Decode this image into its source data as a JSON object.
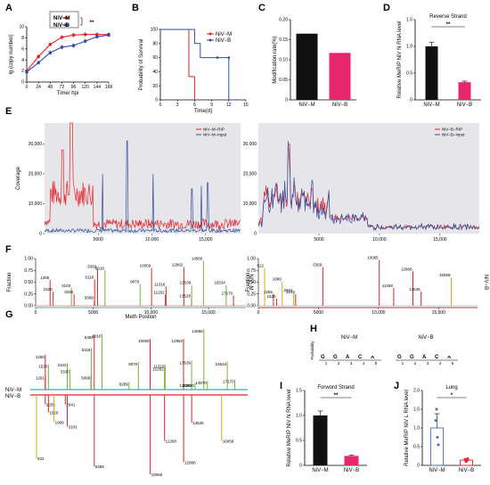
{
  "panel_labels": [
    "A",
    "B",
    "C",
    "D",
    "E",
    "F",
    "G",
    "H",
    "I",
    "J"
  ],
  "chart_data": [
    {
      "panel": "A",
      "type": "line",
      "xlabel": "Time/ hpi",
      "ylabel": "lg (copy number)",
      "x": [
        0,
        24,
        48,
        72,
        96,
        120,
        144,
        168
      ],
      "xtick_labels": [
        "0",
        "24",
        "48",
        "72",
        "96",
        "120",
        "144",
        "168"
      ],
      "yticks": [
        0,
        2,
        4,
        6,
        8,
        10
      ],
      "ylim": [
        0,
        10
      ],
      "xlim": [
        0,
        168
      ],
      "series": [
        {
          "name": "NiV−M",
          "color": "#e8212a",
          "values": [
            2.0,
            4.6,
            6.8,
            8.1,
            8.5,
            8.6,
            8.6,
            8.6
          ]
        },
        {
          "name": "NiV−B",
          "color": "#2e4f9e",
          "values": [
            1.8,
            3.5,
            5.3,
            6.3,
            6.6,
            7.4,
            8.2,
            8.5
          ]
        }
      ],
      "significance": "**"
    },
    {
      "panel": "B",
      "type": "line",
      "xlabel": "Time(d)",
      "ylabel": "Probability of Survival",
      "xticks": [
        0,
        3,
        6,
        9,
        12,
        15
      ],
      "yticks": [
        0,
        20,
        40,
        60,
        80,
        100
      ],
      "xlim": [
        0,
        15
      ],
      "ylim": [
        0,
        100
      ],
      "series": [
        {
          "name": "NiV−M",
          "color": "#e8212a",
          "steps": [
            [
              0,
              100
            ],
            [
              5,
              100
            ],
            [
              5,
              33
            ],
            [
              6,
              33
            ],
            [
              6,
              0
            ]
          ]
        },
        {
          "name": "NiV−B",
          "color": "#2e4f9e",
          "steps": [
            [
              0,
              100
            ],
            [
              6,
              100
            ],
            [
              6,
              80
            ],
            [
              7,
              80
            ],
            [
              7,
              60
            ],
            [
              12,
              60
            ],
            [
              12,
              0
            ],
            [
              13,
              0
            ]
          ]
        }
      ]
    },
    {
      "panel": "C",
      "type": "bar",
      "ylabel": "Modification rate(%)",
      "categories": [
        "NiV−M",
        "NiV−B"
      ],
      "values": [
        0.165,
        0.117
      ],
      "colors": [
        "#111111",
        "#e8266e"
      ],
      "yticks": [
        0,
        0.05,
        0.1,
        0.15,
        0.2
      ],
      "ytick_labels": [
        "0",
        "0.05",
        "0.10",
        "0.15",
        "0.20"
      ],
      "ylim": [
        0,
        0.2
      ]
    },
    {
      "panel": "D",
      "type": "bar",
      "title": "Reverse Strand",
      "ylabel": "Relative MeRIP NiV N RNA level",
      "categories": [
        "NiV−M",
        "NiV−B"
      ],
      "values": [
        1.0,
        0.33
      ],
      "errors": [
        0.08,
        0.02
      ],
      "colors": [
        "#111111",
        "#e8266e"
      ],
      "yticks": [
        0,
        0.5,
        1.0,
        1.5
      ],
      "ytick_labels": [
        "0",
        "0.5",
        "1.0",
        "1.5"
      ],
      "ylim": [
        0,
        1.5
      ],
      "significance": "**"
    },
    {
      "panel": "E",
      "type": "area",
      "ylabel": "Coverage",
      "xticks": [
        5000,
        10000,
        15000
      ],
      "xtick_labels": [
        "5000",
        "10,000",
        "15,000"
      ],
      "yticks": [
        0,
        10000,
        20000,
        30000
      ],
      "ytick_labels": [
        "0",
        "10,000",
        "20,000",
        "30,000"
      ],
      "xlim": [
        0,
        18246
      ],
      "ylim": [
        0,
        37000
      ],
      "tracks": [
        {
          "legend": [
            "NiV−M−RIP",
            "NiV−M−Input"
          ],
          "colors": [
            "#e8212a",
            "#2e4f9e"
          ]
        },
        {
          "legend": [
            "NiV−B−RIP",
            "NiV−B−Input"
          ],
          "colors": [
            "#e8212a",
            "#2e4f9e"
          ]
        }
      ]
    },
    {
      "panel": "F",
      "type": "bar",
      "xlabel": "Meth Postion",
      "ylabel": "Fraction",
      "yticks": [
        0,
        0.25,
        0.5,
        0.75,
        1.0
      ],
      "ytick_labels": [
        "0.00",
        "0.25",
        "0.50",
        "0.75",
        "1.00"
      ],
      "xticks": [
        0,
        5000,
        10000,
        15000
      ],
      "xtick_labels": [
        "0",
        "5000",
        "10,000",
        "15,000"
      ],
      "sides": [
        {
          "tag": "NiV−M",
          "sites": [
            {
              "pos": 1255,
              "f": 0.55,
              "c": "#d62728"
            },
            {
              "pos": 1520,
              "f": 0.3,
              "c": "#d62728"
            },
            {
              "pos": 3103,
              "f": 0.38,
              "c": "#7cae3a"
            },
            {
              "pos": 3335,
              "f": 0.25,
              "c": "#d62728"
            },
            {
              "pos": 5099,
              "f": 0.12,
              "c": "#d62728"
            },
            {
              "pos": 5118,
              "f": 0.56,
              "c": "#d62728"
            },
            {
              "pos": 5369,
              "f": 0.78,
              "c": "#d62728"
            },
            {
              "pos": 6018,
              "f": 0.75,
              "c": "#7cae3a"
            },
            {
              "pos": 9070,
              "f": 0.46,
              "c": "#7cae3a"
            },
            {
              "pos": 10059,
              "f": 0.8,
              "c": "#d62728"
            },
            {
              "pos": 11262,
              "f": 0.24,
              "c": "#d62728"
            },
            {
              "pos": 11316,
              "f": 0.41,
              "c": "#d62728"
            },
            {
              "pos": 12862,
              "f": 0.82,
              "c": "#d62728"
            },
            {
              "pos": 13528,
              "f": 0.16,
              "c": "#d62728"
            },
            {
              "pos": 13539,
              "f": 0.44,
              "c": "#7cae3a"
            },
            {
              "pos": 14566,
              "f": 0.95,
              "c": "#7cae3a"
            },
            {
              "pos": 16534,
              "f": 0.44,
              "c": "#7cae3a"
            },
            {
              "pos": 17170,
              "f": 0.22,
              "c": "#d62728"
            }
          ]
        },
        {
          "tag": "NiV−B",
          "sites": [
            {
              "pos": 522,
              "f": 0.8,
              "c": "#d9a61c"
            },
            {
              "pos": 1255,
              "f": 0.25,
              "c": "#d62728"
            },
            {
              "pos": 1520,
              "f": 0.15,
              "c": "#d62728"
            },
            {
              "pos": 1989,
              "f": 0.52,
              "c": "#d9a61c"
            },
            {
              "pos": 2941,
              "f": 0.28,
              "c": "#d9a61c"
            },
            {
              "pos": 3103,
              "f": 0.25,
              "c": "#d62728"
            },
            {
              "pos": 5369,
              "f": 0.82,
              "c": "#d62728"
            },
            {
              "pos": 10065,
              "f": 0.97,
              "c": "#d62728"
            },
            {
              "pos": 11268,
              "f": 0.38,
              "c": "#d62728"
            },
            {
              "pos": 12868,
              "f": 0.73,
              "c": "#d62728"
            },
            {
              "pos": 13545,
              "f": 0.3,
              "c": "#d62728"
            },
            {
              "pos": 16058,
              "f": 0.6,
              "c": "#d9a61c"
            }
          ]
        }
      ]
    },
    {
      "panel": "G",
      "type": "bar",
      "tracks": [
        "NiV−M",
        "NiV−B"
      ],
      "up_sites": [
        {
          "pos": 1255,
          "f": 0.55,
          "c": "#d62728"
        },
        {
          "pos": 1261,
          "f": 0.22,
          "c": "#d62728"
        },
        {
          "pos": 1520,
          "f": 0.4,
          "c": "#7cae3a"
        },
        {
          "pos": 3103,
          "f": 0.42,
          "c": "#7cae3a"
        },
        {
          "pos": 3335,
          "f": 0.32,
          "c": "#7cae3a"
        },
        {
          "pos": 5099,
          "f": 0.22,
          "c": "#d62728"
        },
        {
          "pos": 5118,
          "f": 0.66,
          "c": "#7cae3a"
        },
        {
          "pos": 5369,
          "f": 0.86,
          "c": "#d62728"
        },
        {
          "pos": 6018,
          "f": 0.88,
          "c": "#7cae3a"
        },
        {
          "pos": 8289,
          "f": 0.12,
          "c": "#7cae3a"
        },
        {
          "pos": 9070,
          "f": 0.44,
          "c": "#7cae3a"
        },
        {
          "pos": 10059,
          "f": 0.8,
          "c": "#d62728"
        },
        {
          "pos": 11262,
          "f": 0.36,
          "c": "#7cae3a"
        },
        {
          "pos": 11316,
          "f": 0.4,
          "c": "#7cae3a"
        },
        {
          "pos": 12862,
          "f": 0.8,
          "c": "#d62728"
        },
        {
          "pos": 13528,
          "f": 0.1,
          "c": "#7cae3a"
        },
        {
          "pos": 13539,
          "f": 0.46,
          "c": "#7cae3a"
        },
        {
          "pos": 13830,
          "f": 0.1,
          "c": "#7cae3a"
        },
        {
          "pos": 14566,
          "f": 0.96,
          "c": "#7cae3a"
        },
        {
          "pos": 14870,
          "f": 0.14,
          "c": "#7cae3a"
        },
        {
          "pos": 16534,
          "f": 0.44,
          "c": "#7cae3a"
        },
        {
          "pos": 17170,
          "f": 0.16,
          "c": "#7cae3a"
        }
      ],
      "down_sites": [
        {
          "pos": 522,
          "f": 0.8,
          "c": "#d9a61c"
        },
        {
          "pos": 1255,
          "f": 0.12,
          "c": "#d62728"
        },
        {
          "pos": 1520,
          "f": 0.22,
          "c": "#d62728"
        },
        {
          "pos": 1989,
          "f": 0.34,
          "c": "#d9a61c"
        },
        {
          "pos": 2941,
          "f": 0.12,
          "c": "#d62728"
        },
        {
          "pos": 3103,
          "f": 0.4,
          "c": "#d62728"
        },
        {
          "pos": 5369,
          "f": 0.9,
          "c": "#d62728"
        },
        {
          "pos": 10065,
          "f": 1.0,
          "c": "#d62728"
        },
        {
          "pos": 11268,
          "f": 0.58,
          "c": "#d62728"
        },
        {
          "pos": 12868,
          "f": 0.85,
          "c": "#d62728"
        },
        {
          "pos": 13545,
          "f": 0.35,
          "c": "#d62728"
        },
        {
          "pos": 16058,
          "f": 0.58,
          "c": "#d9a61c"
        }
      ]
    },
    {
      "panel": "H",
      "type": "table",
      "motifs": [
        {
          "title": "NiV−M",
          "letters": [
            "G",
            "G",
            "A",
            "C",
            "A"
          ],
          "colors": [
            "#f0a500",
            "#f0a500",
            "#2ea84a",
            "#1f5fbf",
            "#2ea84a"
          ]
        },
        {
          "title": "NiV−B",
          "letters": [
            "G",
            "G",
            "A",
            "C",
            "A"
          ],
          "colors": [
            "#f0a500",
            "#f0a500",
            "#2ea84a",
            "#1f5fbf",
            "#2ea84a"
          ]
        }
      ],
      "positions": [
        "1",
        "2",
        "3",
        "4",
        "5"
      ],
      "ylabel": "Probability"
    },
    {
      "panel": "I",
      "type": "bar",
      "title": "Forword Strand",
      "ylabel": "Relative MeRIP NiV N RNA level",
      "categories": [
        "NiV−M",
        "NiV−B"
      ],
      "values": [
        1.0,
        0.19
      ],
      "errors": [
        0.09,
        0.02
      ],
      "colors": [
        "#111111",
        "#e8266e"
      ],
      "yticks": [
        0,
        0.5,
        1.0,
        1.5
      ],
      "ytick_labels": [
        "0",
        "0.5",
        "1.0",
        "1.5"
      ],
      "ylim": [
        0,
        1.5
      ],
      "significance": "**"
    },
    {
      "panel": "J",
      "type": "bar",
      "title": "Lung",
      "ylabel": "Relative MeRIP NiV L RNA level",
      "categories": [
        "NiV−M",
        "NiV−B"
      ],
      "values": [
        1.0,
        0.14
      ],
      "errors": [
        0.38,
        0.03
      ],
      "points": [
        [
          1.5,
          0.75,
          1.2,
          0.55
        ],
        [
          0.1,
          0.12,
          0.16,
          0.18
        ]
      ],
      "colors": [
        "#3b6fd6",
        "#e8212a"
      ],
      "yticks": [
        0,
        0.5,
        1.0,
        1.5,
        2.0
      ],
      "ytick_labels": [
        "0",
        "0.5",
        "1.0",
        "1.5",
        "2.0"
      ],
      "ylim": [
        0,
        2
      ],
      "significance": "*"
    }
  ]
}
